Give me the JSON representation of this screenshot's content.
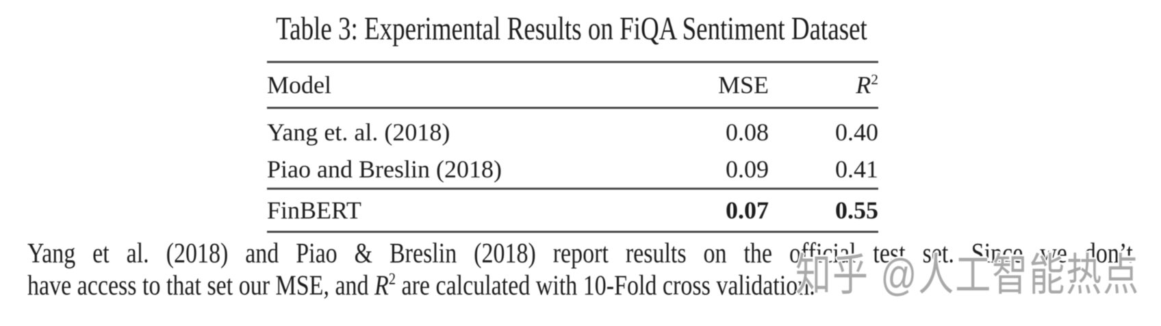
{
  "title": "Table 3: Experimental Results on FiQA Sentiment Dataset",
  "table": {
    "header": {
      "model": "Model",
      "mse": "MSE",
      "r2_base": "R",
      "r2_sup": "2"
    },
    "rows": [
      {
        "model": "Yang et. al. (2018)",
        "mse": "0.08",
        "r2": "0.40"
      },
      {
        "model": "Piao and Breslin (2018)",
        "mse": "0.09",
        "r2": "0.41"
      },
      {
        "model": "FinBERT",
        "mse": "0.07",
        "r2": "0.55"
      }
    ]
  },
  "caption": {
    "line1": "Yang et al. (2018) and Piao & Breslin (2018) report results on the official test set. Since we don’t",
    "line2_pre": "have access to that set our MSE, and ",
    "math_base": "R",
    "math_sup": "2",
    "line2_post": " are calculated with 10-Fold cross validation."
  },
  "watermark": {
    "text": "知乎 @人工智能热点",
    "color": "#a8a8a8"
  },
  "colors": {
    "background": "#ffffff",
    "text": "#1c1c1c",
    "rule": "#454545"
  },
  "chart_data": {
    "type": "table",
    "title": "Table 3: Experimental Results on FiQA Sentiment Dataset",
    "columns": [
      "Model",
      "MSE",
      "R2"
    ],
    "rows": [
      [
        "Yang et. al. (2018)",
        0.08,
        0.4
      ],
      [
        "Piao and Breslin (2018)",
        0.09,
        0.41
      ],
      [
        "FinBERT",
        0.07,
        0.55
      ]
    ],
    "bold_row": "FinBERT"
  }
}
